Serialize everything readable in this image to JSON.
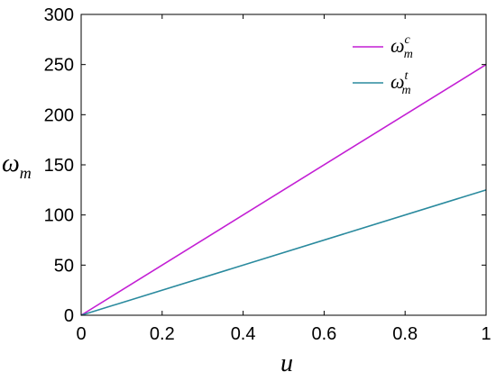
{
  "chart_data": {
    "type": "line",
    "title": "",
    "xlabel": "u",
    "ylabel": {
      "base": "ω",
      "sub": "m"
    },
    "xlim": [
      0,
      1
    ],
    "ylim": [
      0,
      300
    ],
    "xticks": [
      0,
      0.2,
      0.4,
      0.6,
      0.8,
      1
    ],
    "xtick_labels": [
      "0",
      "0.2",
      "0.4",
      "0.6",
      "0.8",
      "1"
    ],
    "yticks": [
      0,
      50,
      100,
      150,
      200,
      250,
      300
    ],
    "ytick_labels": [
      "0",
      "50",
      "100",
      "150",
      "200",
      "250",
      "300"
    ],
    "grid": false,
    "legend_position": "top-right",
    "series": [
      {
        "name": "ω_m^c",
        "label_base": "ω",
        "label_sub": "m",
        "label_sup": "c",
        "color": "#c31fd4",
        "x": [
          0,
          1
        ],
        "y": [
          0,
          250
        ]
      },
      {
        "name": "ω_m^t",
        "label_base": "ω",
        "label_sub": "m",
        "label_sup": "t",
        "color": "#2a8a9e",
        "x": [
          0,
          1
        ],
        "y": [
          0,
          125
        ]
      }
    ]
  }
}
